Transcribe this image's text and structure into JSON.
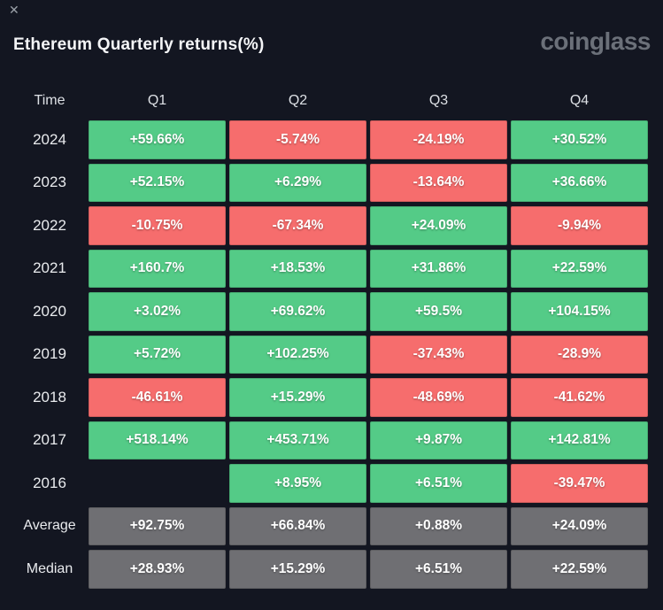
{
  "window": {
    "close_icon": "✕"
  },
  "header": {
    "title": "Ethereum Quarterly returns(%)",
    "brand": "coinglass"
  },
  "colors": {
    "background": "#131621",
    "positive": "#54cb87",
    "negative": "#f66d6d",
    "summary": "#6f6f73"
  },
  "table": {
    "column_headers": [
      "Time",
      "Q1",
      "Q2",
      "Q3",
      "Q4"
    ],
    "rows": [
      {
        "label": "2024",
        "cells": [
          {
            "text": "+59.66%",
            "type": "pos"
          },
          {
            "text": "-5.74%",
            "type": "neg"
          },
          {
            "text": "-24.19%",
            "type": "neg"
          },
          {
            "text": "+30.52%",
            "type": "pos"
          }
        ]
      },
      {
        "label": "2023",
        "cells": [
          {
            "text": "+52.15%",
            "type": "pos"
          },
          {
            "text": "+6.29%",
            "type": "pos"
          },
          {
            "text": "-13.64%",
            "type": "neg"
          },
          {
            "text": "+36.66%",
            "type": "pos"
          }
        ]
      },
      {
        "label": "2022",
        "cells": [
          {
            "text": "-10.75%",
            "type": "neg"
          },
          {
            "text": "-67.34%",
            "type": "neg"
          },
          {
            "text": "+24.09%",
            "type": "pos"
          },
          {
            "text": "-9.94%",
            "type": "neg"
          }
        ]
      },
      {
        "label": "2021",
        "cells": [
          {
            "text": "+160.7%",
            "type": "pos"
          },
          {
            "text": "+18.53%",
            "type": "pos"
          },
          {
            "text": "+31.86%",
            "type": "pos"
          },
          {
            "text": "+22.59%",
            "type": "pos"
          }
        ]
      },
      {
        "label": "2020",
        "cells": [
          {
            "text": "+3.02%",
            "type": "pos"
          },
          {
            "text": "+69.62%",
            "type": "pos"
          },
          {
            "text": "+59.5%",
            "type": "pos"
          },
          {
            "text": "+104.15%",
            "type": "pos"
          }
        ]
      },
      {
        "label": "2019",
        "cells": [
          {
            "text": "+5.72%",
            "type": "pos"
          },
          {
            "text": "+102.25%",
            "type": "pos"
          },
          {
            "text": "-37.43%",
            "type": "neg"
          },
          {
            "text": "-28.9%",
            "type": "neg"
          }
        ]
      },
      {
        "label": "2018",
        "cells": [
          {
            "text": "-46.61%",
            "type": "neg"
          },
          {
            "text": "+15.29%",
            "type": "pos"
          },
          {
            "text": "-48.69%",
            "type": "neg"
          },
          {
            "text": "-41.62%",
            "type": "neg"
          }
        ]
      },
      {
        "label": "2017",
        "cells": [
          {
            "text": "+518.14%",
            "type": "pos"
          },
          {
            "text": "+453.71%",
            "type": "pos"
          },
          {
            "text": "+9.87%",
            "type": "pos"
          },
          {
            "text": "+142.81%",
            "type": "pos"
          }
        ]
      },
      {
        "label": "2016",
        "cells": [
          {
            "text": "",
            "type": "empty"
          },
          {
            "text": "+8.95%",
            "type": "pos"
          },
          {
            "text": "+6.51%",
            "type": "pos"
          },
          {
            "text": "-39.47%",
            "type": "neg"
          }
        ]
      },
      {
        "label": "Average",
        "cells": [
          {
            "text": "+92.75%",
            "type": "avg"
          },
          {
            "text": "+66.84%",
            "type": "avg"
          },
          {
            "text": "+0.88%",
            "type": "avg"
          },
          {
            "text": "+24.09%",
            "type": "avg"
          }
        ]
      },
      {
        "label": "Median",
        "cells": [
          {
            "text": "+28.93%",
            "type": "avg"
          },
          {
            "text": "+15.29%",
            "type": "avg"
          },
          {
            "text": "+6.51%",
            "type": "avg"
          },
          {
            "text": "+22.59%",
            "type": "avg"
          }
        ]
      }
    ]
  },
  "chart_data": {
    "type": "table",
    "title": "Ethereum Quarterly returns(%)",
    "columns": [
      "Q1",
      "Q2",
      "Q3",
      "Q4"
    ],
    "row_labels": [
      "2024",
      "2023",
      "2022",
      "2021",
      "2020",
      "2019",
      "2018",
      "2017",
      "2016",
      "Average",
      "Median"
    ],
    "values_percent": [
      [
        59.66,
        -5.74,
        -24.19,
        30.52
      ],
      [
        52.15,
        6.29,
        -13.64,
        36.66
      ],
      [
        -10.75,
        -67.34,
        24.09,
        -9.94
      ],
      [
        160.7,
        18.53,
        31.86,
        22.59
      ],
      [
        3.02,
        69.62,
        59.5,
        104.15
      ],
      [
        5.72,
        102.25,
        -37.43,
        -28.9
      ],
      [
        -46.61,
        15.29,
        -48.69,
        -41.62
      ],
      [
        518.14,
        453.71,
        9.87,
        142.81
      ],
      [
        null,
        8.95,
        6.51,
        -39.47
      ],
      [
        92.75,
        66.84,
        0.88,
        24.09
      ],
      [
        28.93,
        15.29,
        6.51,
        22.59
      ]
    ],
    "color_coding": "green = positive return, red = negative return, gray = Average/Median summary rows, blank = no data (2016 Q1)"
  }
}
